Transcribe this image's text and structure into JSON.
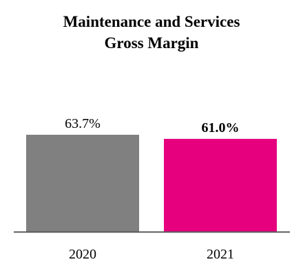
{
  "chart_data": {
    "type": "bar",
    "title_lines": [
      "Maintenance and Services",
      "Gross Margin"
    ],
    "categories": [
      "2020",
      "2021"
    ],
    "values": [
      63.7,
      61.0
    ],
    "data_labels": [
      "63.7%",
      "61.0%"
    ],
    "bold_labels": [
      false,
      true
    ],
    "colors": [
      "#808080",
      "#e6007e"
    ],
    "axis_color": "#595959",
    "ylim": [
      0,
      100
    ],
    "grid": false,
    "legend": "none"
  }
}
